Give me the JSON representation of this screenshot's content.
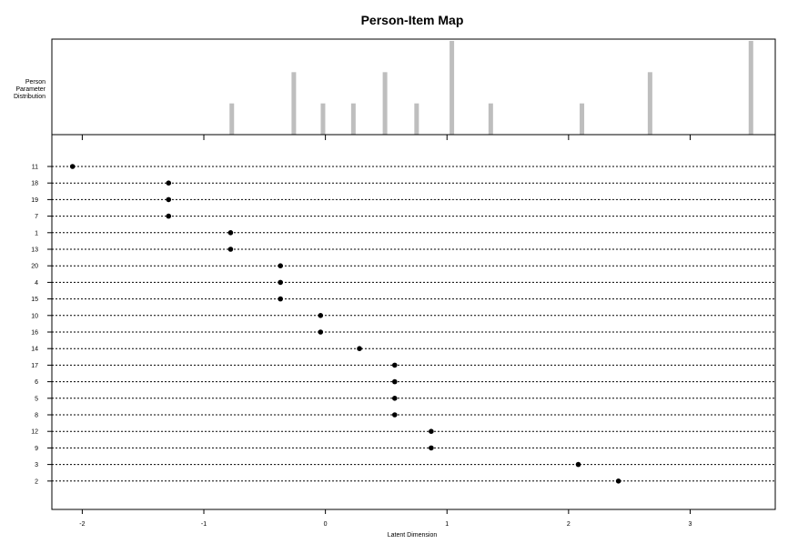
{
  "chart_data": {
    "type": "scatter",
    "title": "Person-Item Map",
    "top_panel_label": [
      "Person",
      "Parameter",
      "Distribution"
    ],
    "xlabel": "Latent Dimension",
    "xlim": [
      -2.25,
      3.7
    ],
    "x_ticks": [
      -2,
      -1,
      0,
      1,
      2,
      3
    ],
    "x_tick_labels": [
      "-2",
      "-1",
      "0",
      "1",
      "2",
      "3"
    ],
    "person_distribution": {
      "type": "bar",
      "x": [
        -0.77,
        -0.26,
        -0.02,
        0.23,
        0.49,
        0.75,
        1.04,
        1.36,
        2.11,
        2.67,
        3.5
      ],
      "counts": [
        1,
        2,
        1,
        1,
        2,
        1,
        3,
        1,
        1,
        2,
        3
      ]
    },
    "items": {
      "labels": [
        "11",
        "18",
        "19",
        "7",
        "1",
        "13",
        "20",
        "4",
        "15",
        "10",
        "16",
        "14",
        "17",
        "6",
        "5",
        "8",
        "12",
        "9",
        "3",
        "2"
      ],
      "locations": [
        -2.08,
        -1.29,
        -1.29,
        -1.29,
        -0.78,
        -0.78,
        -0.37,
        -0.37,
        -0.37,
        -0.04,
        -0.04,
        0.28,
        0.57,
        0.57,
        0.57,
        0.57,
        0.87,
        0.87,
        2.08,
        2.41
      ]
    }
  }
}
